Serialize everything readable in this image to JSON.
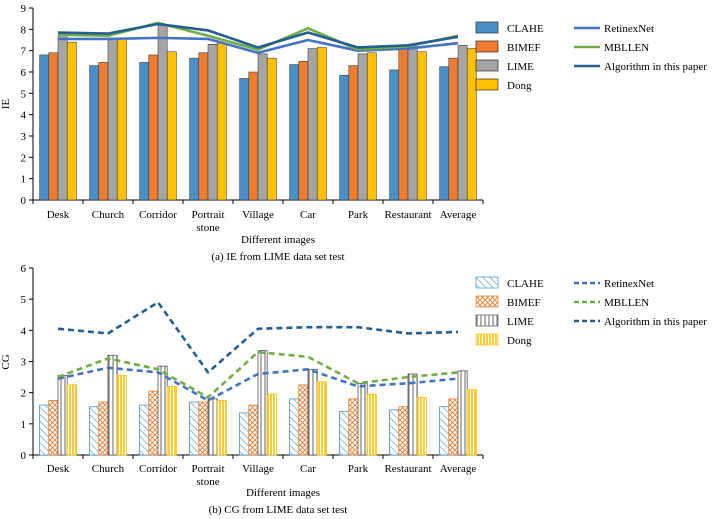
{
  "chart_data": [
    {
      "type": "bar",
      "title": "",
      "caption": "(a) IE from LIME data set test",
      "xlabel": "Different images",
      "ylabel": "IE",
      "ylim": [
        0,
        9
      ],
      "yticks": [
        0,
        1,
        2,
        3,
        4,
        5,
        6,
        7,
        8,
        9
      ],
      "categories": [
        "Desk",
        "Church",
        "Corridor",
        "Portrait stone",
        "Village",
        "Car",
        "Park",
        "Restaurant",
        "Average"
      ],
      "series": [
        {
          "name": "CLAHE",
          "color": "#4a90c8",
          "pattern": "solid",
          "values": [
            6.8,
            6.3,
            6.45,
            6.65,
            5.7,
            6.35,
            5.85,
            6.1,
            6.25
          ]
        },
        {
          "name": "BIMEF",
          "color": "#ee7d31",
          "pattern": "solid",
          "values": [
            6.9,
            6.45,
            6.8,
            6.9,
            6.0,
            6.5,
            6.3,
            7.2,
            6.65
          ]
        },
        {
          "name": "LIME",
          "color": "#a5a5a5",
          "pattern": "solid",
          "values": [
            7.7,
            7.6,
            8.2,
            7.3,
            6.85,
            7.1,
            6.85,
            7.25,
            7.25
          ]
        },
        {
          "name": "Dong",
          "color": "#ffc000",
          "pattern": "solid",
          "values": [
            7.4,
            7.6,
            6.95,
            7.35,
            6.65,
            7.15,
            6.9,
            6.95,
            7.1
          ]
        }
      ],
      "lines": [
        {
          "name": "RetinexNet",
          "color": "#4472c4",
          "style": "solid",
          "values": [
            7.55,
            7.55,
            7.6,
            7.55,
            6.9,
            7.5,
            7.0,
            7.1,
            7.35
          ]
        },
        {
          "name": "MBLLEN",
          "color": "#70ad47",
          "style": "solid",
          "values": [
            7.75,
            7.7,
            8.3,
            7.7,
            7.05,
            8.05,
            7.05,
            7.2,
            7.7
          ]
        },
        {
          "name": "Algorithm in this paper",
          "color": "#255e91",
          "style": "solid",
          "values": [
            7.85,
            7.8,
            8.25,
            7.95,
            7.15,
            7.85,
            7.15,
            7.25,
            7.65
          ]
        }
      ]
    },
    {
      "type": "bar",
      "title": "",
      "caption": "(b) CG from LIME data set test",
      "xlabel": "Different images",
      "ylabel": "CG",
      "ylim": [
        0,
        6
      ],
      "yticks": [
        0,
        1,
        2,
        3,
        4,
        5,
        6
      ],
      "categories": [
        "Desk",
        "Church",
        "Corridor",
        "Portrait stone",
        "Village",
        "Car",
        "Park",
        "Restaurant",
        "Average"
      ],
      "series": [
        {
          "name": "CLAHE",
          "color": "#4a90c8",
          "pattern": "diagonal",
          "values": [
            1.6,
            1.55,
            1.6,
            1.7,
            1.35,
            1.8,
            1.4,
            1.45,
            1.55
          ]
        },
        {
          "name": "BIMEF",
          "color": "#ee7d31",
          "pattern": "crosshatch",
          "values": [
            1.75,
            1.7,
            2.05,
            1.7,
            1.6,
            2.25,
            1.8,
            1.55,
            1.8
          ]
        },
        {
          "name": "LIME",
          "color": "#555555",
          "pattern": "vertical",
          "values": [
            2.55,
            3.2,
            2.85,
            1.8,
            3.35,
            2.75,
            2.3,
            2.6,
            2.7
          ]
        },
        {
          "name": "Dong",
          "color": "#ffc000",
          "pattern": "vertical-fill",
          "values": [
            2.25,
            2.55,
            2.2,
            1.75,
            1.95,
            2.35,
            1.95,
            1.85,
            2.1
          ]
        }
      ],
      "lines": [
        {
          "name": "RetinexNet",
          "color": "#4472c4",
          "style": "dashed",
          "values": [
            2.45,
            2.8,
            2.65,
            1.75,
            2.6,
            2.75,
            2.2,
            2.3,
            2.45
          ]
        },
        {
          "name": "MBLLEN",
          "color": "#70ad47",
          "style": "dashed",
          "values": [
            2.5,
            3.1,
            2.75,
            1.85,
            3.3,
            3.15,
            2.3,
            2.5,
            2.65
          ]
        },
        {
          "name": "Algorithm in this paper",
          "color": "#255e91",
          "style": "dashed",
          "values": [
            4.05,
            3.9,
            4.9,
            2.65,
            4.05,
            4.1,
            4.1,
            3.9,
            3.95
          ]
        }
      ]
    }
  ]
}
